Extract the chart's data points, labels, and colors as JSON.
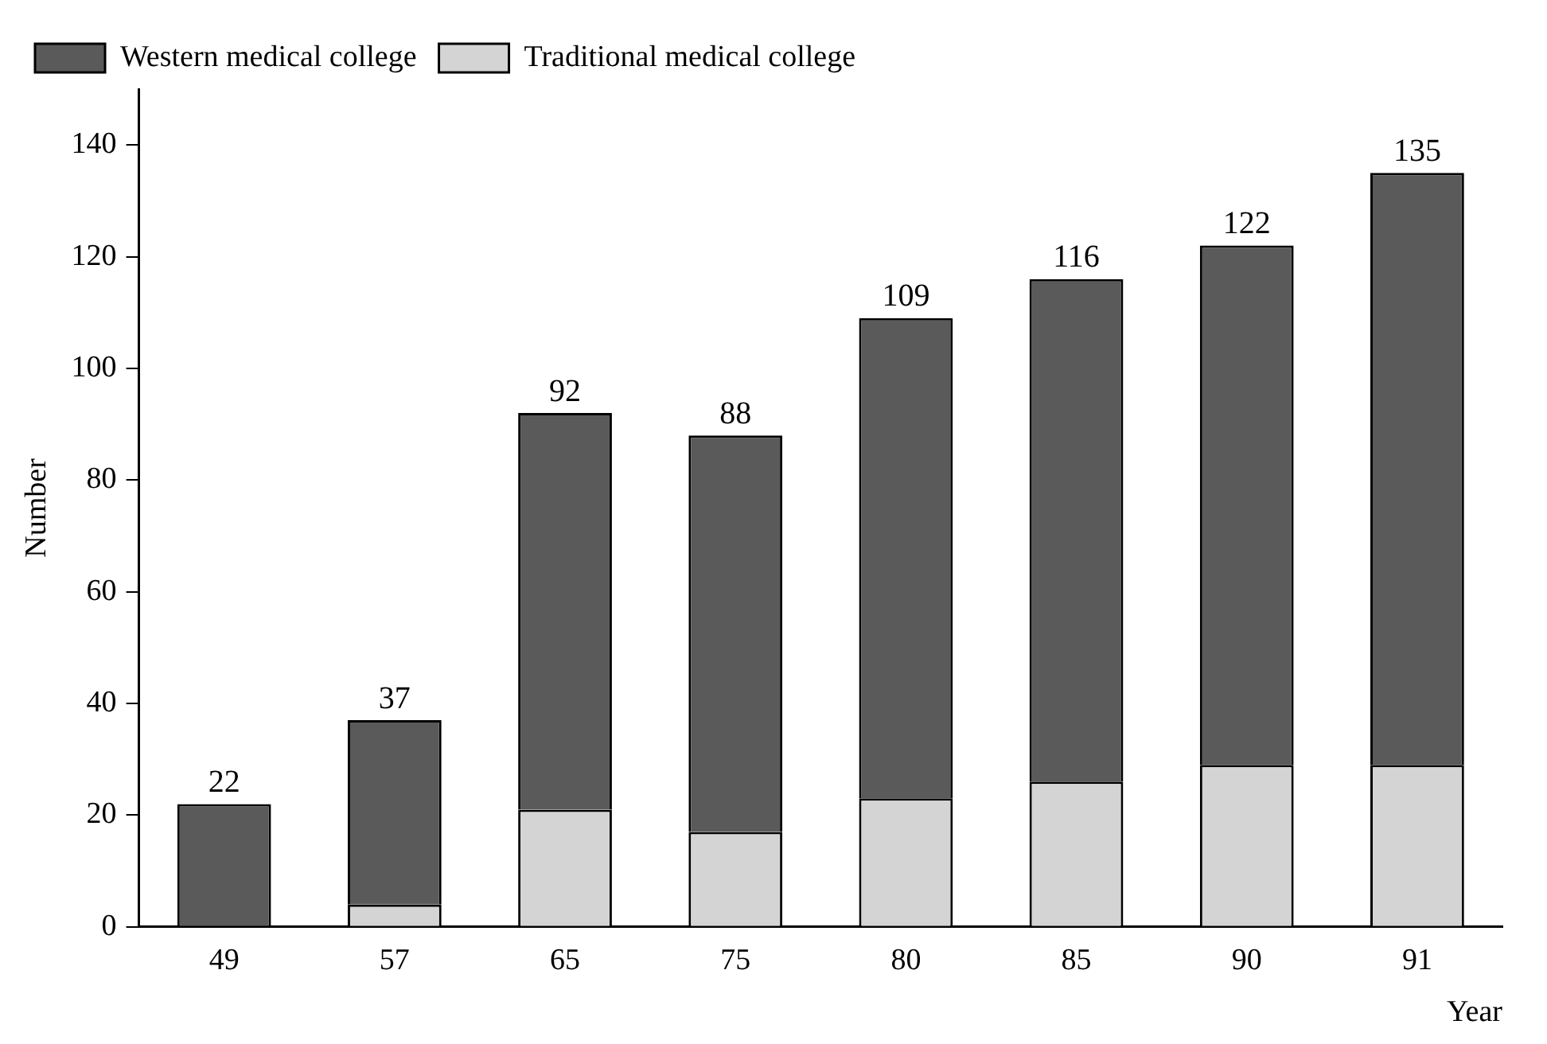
{
  "chart_data": {
    "type": "bar",
    "stacked": true,
    "ylabel": "Number",
    "xlabel": "Year",
    "categories": [
      "49",
      "57",
      "65",
      "75",
      "80",
      "85",
      "90",
      "91"
    ],
    "series": [
      {
        "name": "Traditional medical college",
        "color": "#d4d4d4",
        "values": [
          0,
          4,
          21,
          17,
          23,
          26,
          29,
          29
        ]
      },
      {
        "name": "Western medical college",
        "color": "#5a5a5a",
        "values": [
          22,
          33,
          71,
          71,
          86,
          90,
          93,
          106
        ]
      }
    ],
    "totals": [
      "22",
      "37",
      "92",
      "88",
      "109",
      "116",
      "122",
      "135"
    ],
    "ylim": [
      0,
      150
    ],
    "yticks": [
      0,
      20,
      40,
      60,
      80,
      100,
      120,
      140
    ],
    "grid": false,
    "legend": "top left"
  }
}
